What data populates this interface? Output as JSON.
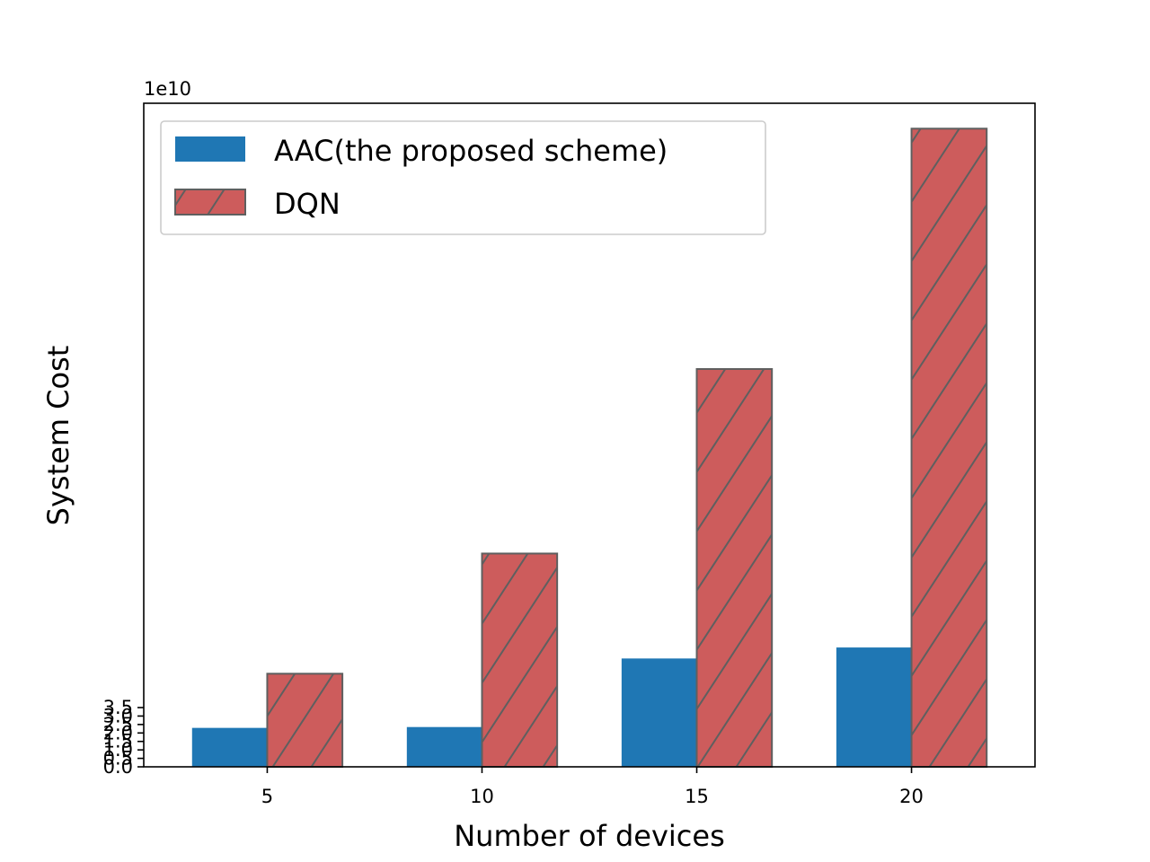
{
  "chart_data": {
    "type": "bar",
    "categories": [
      "5",
      "10",
      "15",
      "20"
    ],
    "series": [
      {
        "name": "AAC(the proposed scheme)",
        "values": [
          2.3,
          2.35,
          6.4,
          7.05
        ],
        "color": "#1f77b4",
        "hatch": "none"
      },
      {
        "name": "DQN",
        "values": [
          5.5,
          12.6,
          23.5,
          37.7
        ],
        "color": "#cd5c5c",
        "hatch": "diagonal"
      }
    ],
    "value_multiplier": "1e10",
    "xlabel": "Number of devices",
    "ylabel": "System Cost",
    "ylim": [
      0,
      39.2
    ],
    "yticks": [
      0.0,
      0.5,
      1.0,
      1.5,
      2.0,
      2.5,
      3.0,
      3.5
    ],
    "ytick_labels": [
      "0.0",
      "0.5",
      "1.0",
      "1.5",
      "2.0",
      "2.5",
      "3.0",
      "3.5"
    ],
    "legend_position": "top-left",
    "grid": false
  }
}
